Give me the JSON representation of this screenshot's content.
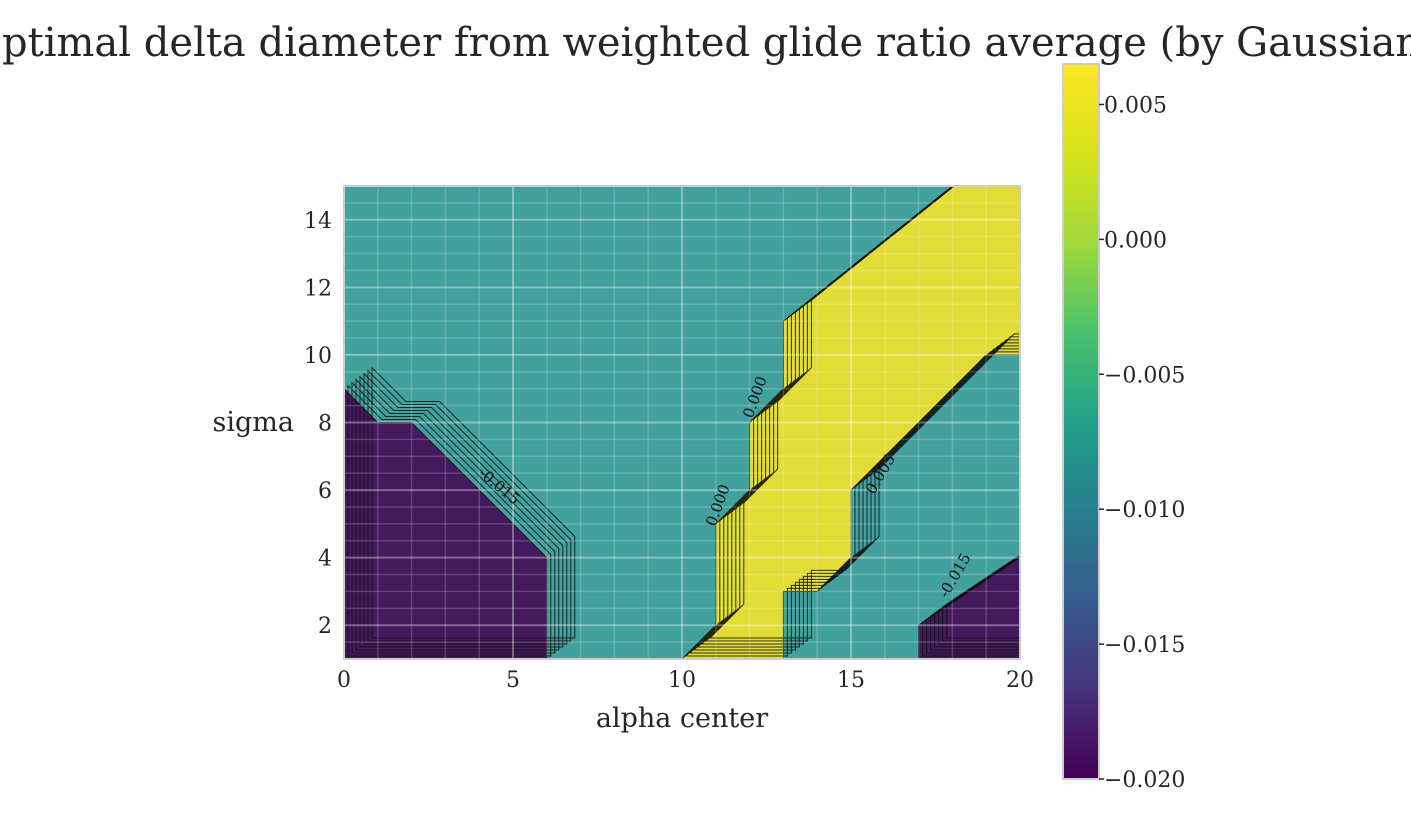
{
  "chart_data": {
    "type": "contour",
    "title": "Optimal delta diameter from weighted glide ratio average (by Gaussian)",
    "xlabel": "alpha center",
    "ylabel": "sigma",
    "xlim": [
      0,
      20
    ],
    "ylim": [
      1,
      15
    ],
    "x_ticks": [
      0,
      5,
      10,
      15,
      20
    ],
    "y_ticks": [
      2,
      4,
      6,
      8,
      10,
      12,
      14
    ],
    "grid": true,
    "colormap": "viridis",
    "levels": [
      -0.02,
      -0.005,
      0.0065
    ],
    "colorbar": {
      "min": -0.02,
      "max": 0.0065,
      "ticks": [
        -0.02,
        -0.015,
        -0.01,
        -0.005,
        0.0,
        0.005
      ],
      "tick_labels": [
        "−0.020",
        "−0.015",
        "−0.010",
        "−0.005",
        "0.000",
        "0.005"
      ]
    },
    "regions": [
      {
        "value": -0.02,
        "color": "#440154",
        "boundary": [
          [
            0,
            1
          ],
          [
            0,
            9
          ],
          [
            1,
            8
          ],
          [
            2,
            8
          ],
          [
            6,
            4
          ],
          [
            6,
            1
          ]
        ]
      },
      {
        "value": -0.02,
        "color": "#440154",
        "boundary": [
          [
            17,
            1
          ],
          [
            17,
            2
          ],
          [
            20,
            4
          ],
          [
            20,
            1
          ]
        ]
      },
      {
        "value": 0.0065,
        "color": "#fde725",
        "boundary": [
          [
            10,
            1
          ],
          [
            11,
            2
          ],
          [
            11,
            5
          ],
          [
            12,
            6
          ],
          [
            12,
            8
          ],
          [
            13,
            9
          ],
          [
            13,
            11
          ],
          [
            18,
            15
          ],
          [
            20,
            15
          ],
          [
            20,
            10
          ],
          [
            19,
            10
          ],
          [
            15,
            6
          ],
          [
            15,
            4
          ],
          [
            14,
            3
          ],
          [
            13,
            3
          ],
          [
            13,
            1
          ]
        ]
      },
      {
        "value": -0.005,
        "color": "#21918c",
        "boundary": [
          [
            0,
            1
          ],
          [
            20,
            1
          ],
          [
            20,
            15
          ],
          [
            0,
            15
          ]
        ]
      }
    ],
    "contour_labels": [
      "-0.015",
      "0.000",
      "0.000",
      "0.005",
      "-0.015"
    ]
  }
}
